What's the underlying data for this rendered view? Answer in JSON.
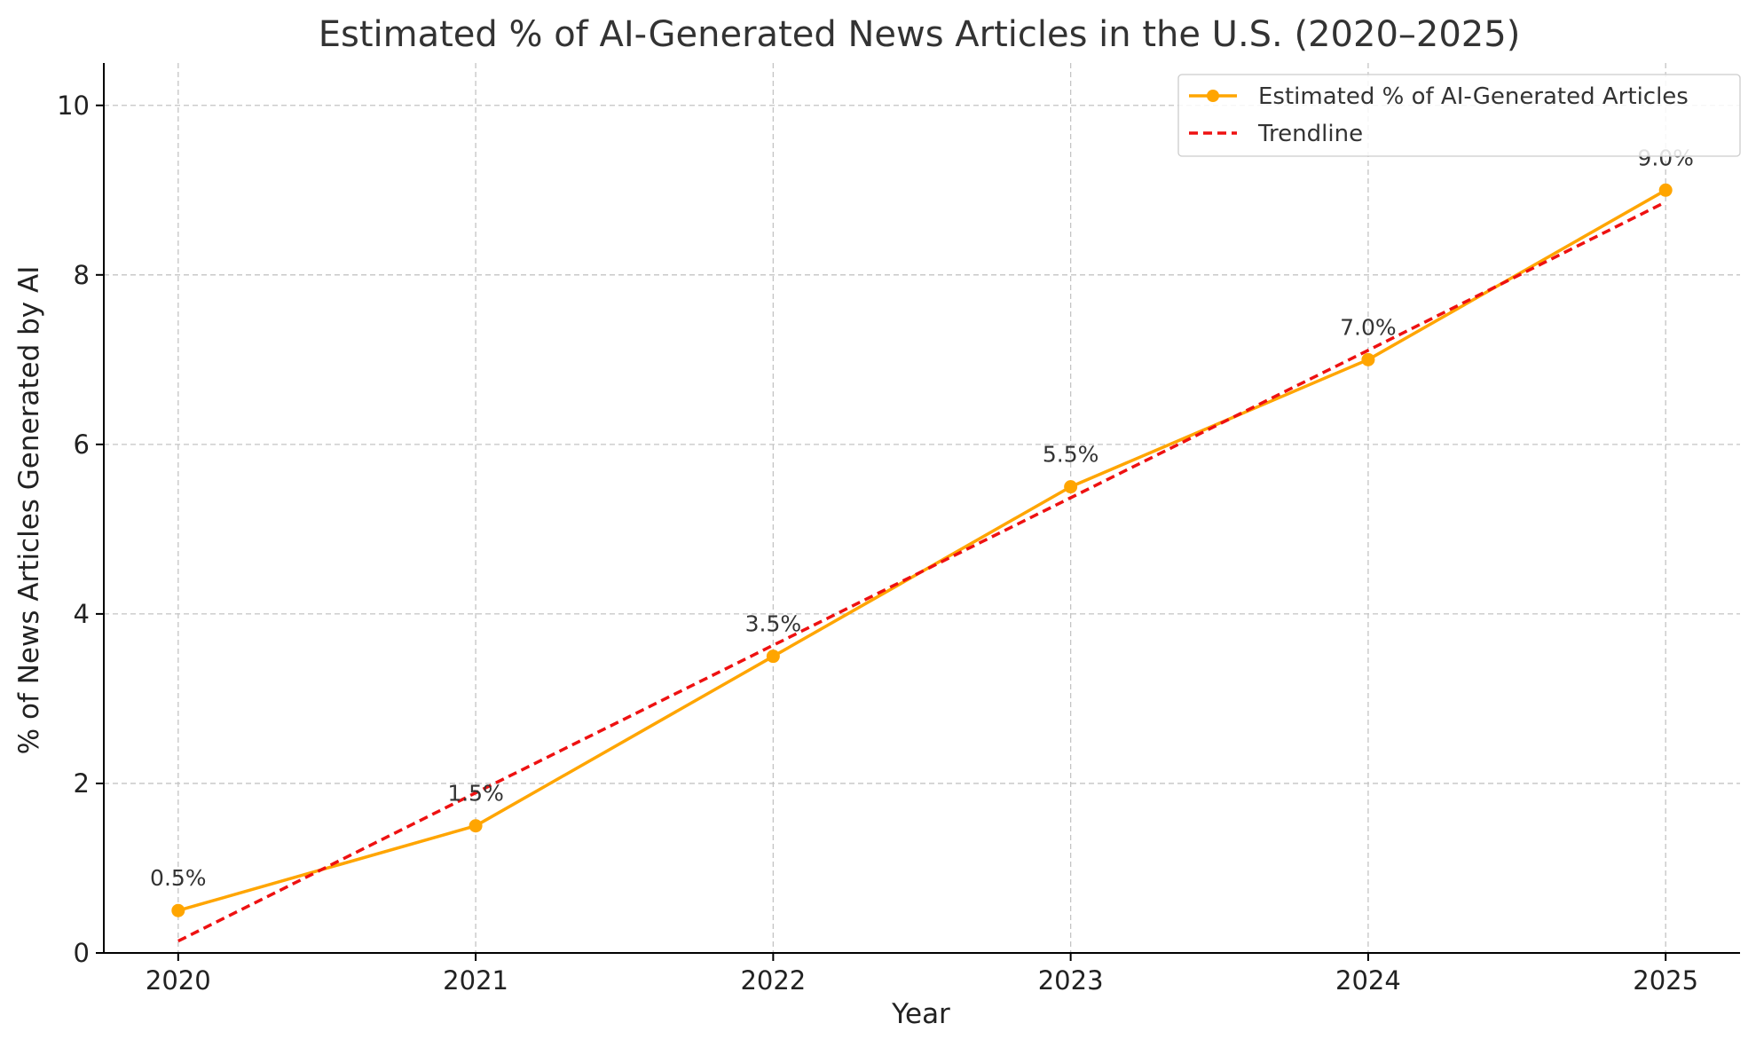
{
  "chart_data": {
    "type": "line",
    "title": "Estimated % of AI-Generated News Articles in the U.S. (2020–2025)",
    "xlabel": "Year",
    "ylabel": "% of News Articles Generated by AI",
    "x": [
      2020,
      2021,
      2022,
      2023,
      2024,
      2025
    ],
    "x_tick_labels": [
      "2020",
      "2021",
      "2022",
      "2023",
      "2024",
      "2025"
    ],
    "y_ticks": [
      0,
      2,
      4,
      6,
      8,
      10
    ],
    "y_tick_labels": [
      "0",
      "2",
      "4",
      "6",
      "8",
      "10"
    ],
    "xlim": [
      2019.75,
      2025.25
    ],
    "ylim": [
      0,
      10.5
    ],
    "grid": true,
    "legend_position": "top-right",
    "series": [
      {
        "name": "Estimated % of AI-Generated Articles",
        "values": [
          0.5,
          1.5,
          3.5,
          5.5,
          7.0,
          9.0
        ],
        "data_labels": [
          "0.5%",
          "1.5%",
          "3.5%",
          "5.5%",
          "7.0%",
          "9.0%"
        ],
        "color": "#FFA500",
        "style": "solid-with-markers"
      },
      {
        "name": "Trendline",
        "values": [
          0.14,
          1.89,
          3.63,
          5.37,
          7.11,
          8.86
        ],
        "color": "#EE1111",
        "style": "dashed"
      }
    ]
  }
}
